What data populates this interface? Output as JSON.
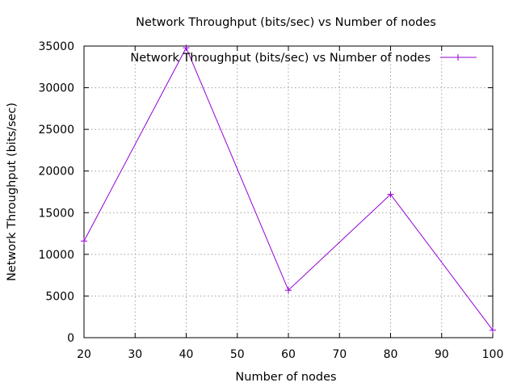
{
  "chart_data": {
    "type": "line",
    "title": "Network Throughput (bits/sec) vs Number of nodes",
    "xlabel": "Number of nodes",
    "ylabel": "Network Throughput (bits/sec)",
    "xlim": [
      20,
      100
    ],
    "ylim": [
      0,
      35000
    ],
    "xticks": [
      20,
      30,
      40,
      50,
      60,
      70,
      80,
      90,
      100
    ],
    "yticks": [
      0,
      5000,
      10000,
      15000,
      20000,
      25000,
      30000,
      35000
    ],
    "grid": true,
    "legend_position": "top-right",
    "series": [
      {
        "name": "Network Throughput (bits/sec) vs Number of nodes",
        "color": "#9400d3",
        "marker": "plus",
        "x": [
          20,
          40,
          60,
          80,
          100
        ],
        "y": [
          11600,
          34800,
          5700,
          17200,
          900
        ]
      }
    ]
  }
}
